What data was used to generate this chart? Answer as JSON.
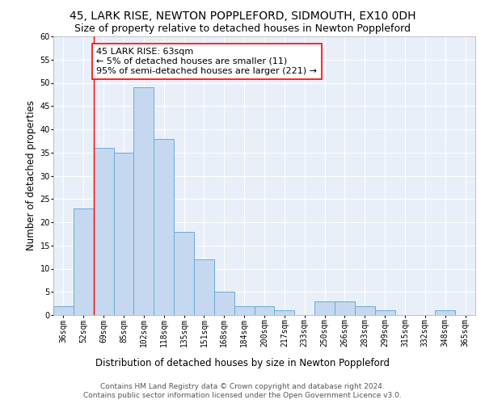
{
  "title": "45, LARK RISE, NEWTON POPPLEFORD, SIDMOUTH, EX10 0DH",
  "subtitle": "Size of property relative to detached houses in Newton Poppleford",
  "xlabel": "Distribution of detached houses by size in Newton Poppleford",
  "ylabel": "Number of detached properties",
  "categories": [
    "36sqm",
    "52sqm",
    "69sqm",
    "85sqm",
    "102sqm",
    "118sqm",
    "135sqm",
    "151sqm",
    "168sqm",
    "184sqm",
    "200sqm",
    "217sqm",
    "233sqm",
    "250sqm",
    "266sqm",
    "283sqm",
    "299sqm",
    "315sqm",
    "332sqm",
    "348sqm",
    "365sqm"
  ],
  "values": [
    2,
    23,
    36,
    35,
    49,
    38,
    18,
    12,
    5,
    2,
    2,
    1,
    0,
    3,
    3,
    2,
    1,
    0,
    0,
    1,
    0
  ],
  "bar_color": "#c5d8f0",
  "bar_edge_color": "#6aaad4",
  "property_line_x": 1.5,
  "property_line_color": "red",
  "annotation_text": "45 LARK RISE: 63sqm\n← 5% of detached houses are smaller (11)\n95% of semi-detached houses are larger (221) →",
  "annotation_box_color": "white",
  "annotation_box_edge_color": "red",
  "ylim": [
    0,
    60
  ],
  "yticks": [
    0,
    5,
    10,
    15,
    20,
    25,
    30,
    35,
    40,
    45,
    50,
    55,
    60
  ],
  "footer_line1": "Contains HM Land Registry data © Crown copyright and database right 2024.",
  "footer_line2": "Contains public sector information licensed under the Open Government Licence v3.0.",
  "bg_color": "#ffffff",
  "plot_bg_color": "#e8eff8",
  "grid_color": "#ffffff",
  "title_fontsize": 10,
  "subtitle_fontsize": 9,
  "axis_label_fontsize": 8.5,
  "tick_fontsize": 7,
  "annotation_fontsize": 8,
  "footer_fontsize": 6.5
}
